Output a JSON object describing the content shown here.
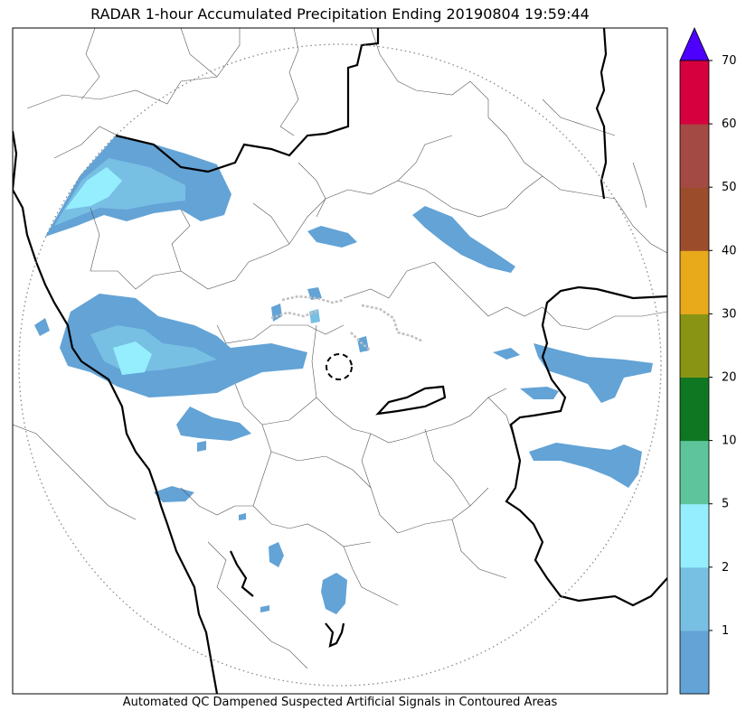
{
  "title": "RADAR 1-hour Accumulated Precipitation Ending 20190804 19:59:44",
  "footer": "Automated QC Dampened Suspected Artificial Signals in Contoured Areas",
  "colorbar": {
    "levels": [
      {
        "label": "",
        "color": "#63a3d6"
      },
      {
        "label": "1",
        "color": "#78bfe4"
      },
      {
        "label": "2",
        "color": "#95eefe"
      },
      {
        "label": "5",
        "color": "#5ec49b"
      },
      {
        "label": "10",
        "color": "#0f7722"
      },
      {
        "label": "20",
        "color": "#899415"
      },
      {
        "label": "30",
        "color": "#e8a91b"
      },
      {
        "label": "40",
        "color": "#9b4d2b"
      },
      {
        "label": "50",
        "color": "#a44a44"
      },
      {
        "label": "60",
        "color": "#d6003e"
      }
    ],
    "top_label": "70",
    "extend_color": "#4e00ff"
  },
  "colors": {
    "rain_light": "#63a3d6",
    "rain_mid": "#78bfe4",
    "rain_high": "#95eefe",
    "qc_contour": "#c0c0c0",
    "state_border": "#000000",
    "district_border": "#555555",
    "range_ring": "#888888"
  }
}
